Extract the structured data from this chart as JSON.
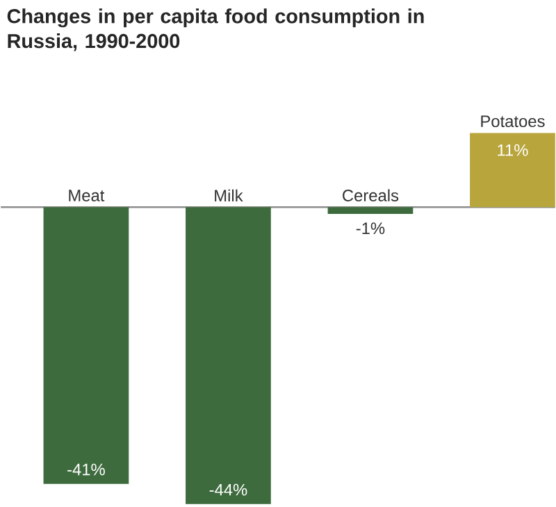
{
  "chart_data": {
    "type": "bar",
    "title": "Changes in per capita food consumption in Russia, 1990-2000",
    "categories": [
      "Meat",
      "Milk",
      "Cereals",
      "Potatoes"
    ],
    "values": [
      -41,
      -44,
      -1,
      11
    ],
    "colors": [
      "#3e6b3e",
      "#3e6b3e",
      "#3e6b3e",
      "#b8a53c"
    ],
    "value_labels": [
      "-41%",
      "-44%",
      "-1%",
      "11%"
    ]
  }
}
